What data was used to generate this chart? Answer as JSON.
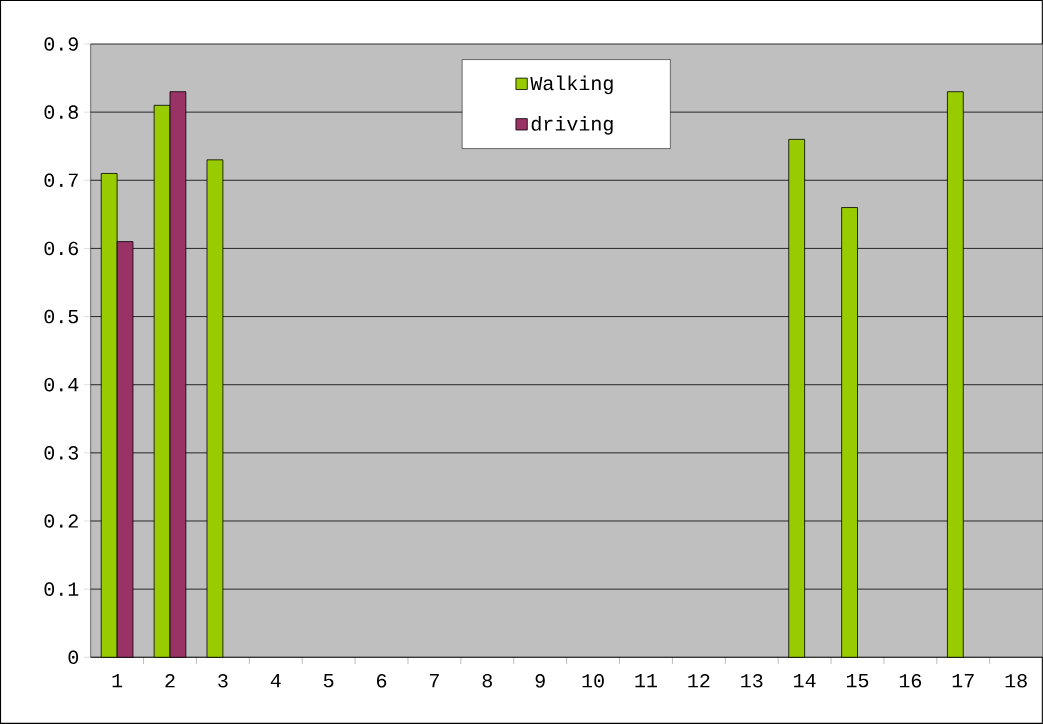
{
  "chart_data": {
    "type": "bar",
    "categories": [
      "1",
      "2",
      "3",
      "4",
      "5",
      "6",
      "7",
      "8",
      "9",
      "10",
      "11",
      "12",
      "13",
      "14",
      "15",
      "16",
      "17",
      "18"
    ],
    "series": [
      {
        "name": "Walking",
        "color": "#99cc00",
        "values": [
          0.71,
          0.81,
          0.73,
          null,
          null,
          null,
          null,
          null,
          null,
          null,
          null,
          null,
          null,
          0.76,
          0.66,
          null,
          0.83,
          null
        ]
      },
      {
        "name": "driving",
        "color": "#993366",
        "values": [
          0.61,
          0.83,
          null,
          null,
          null,
          null,
          null,
          null,
          null,
          null,
          null,
          null,
          null,
          null,
          null,
          null,
          null,
          null
        ]
      }
    ],
    "ylim": [
      0,
      0.9
    ],
    "yticks": [
      0,
      0.1,
      0.2,
      0.3,
      0.4,
      0.5,
      0.6,
      0.7,
      0.8,
      0.9
    ],
    "grid": "y",
    "legend": "top"
  }
}
